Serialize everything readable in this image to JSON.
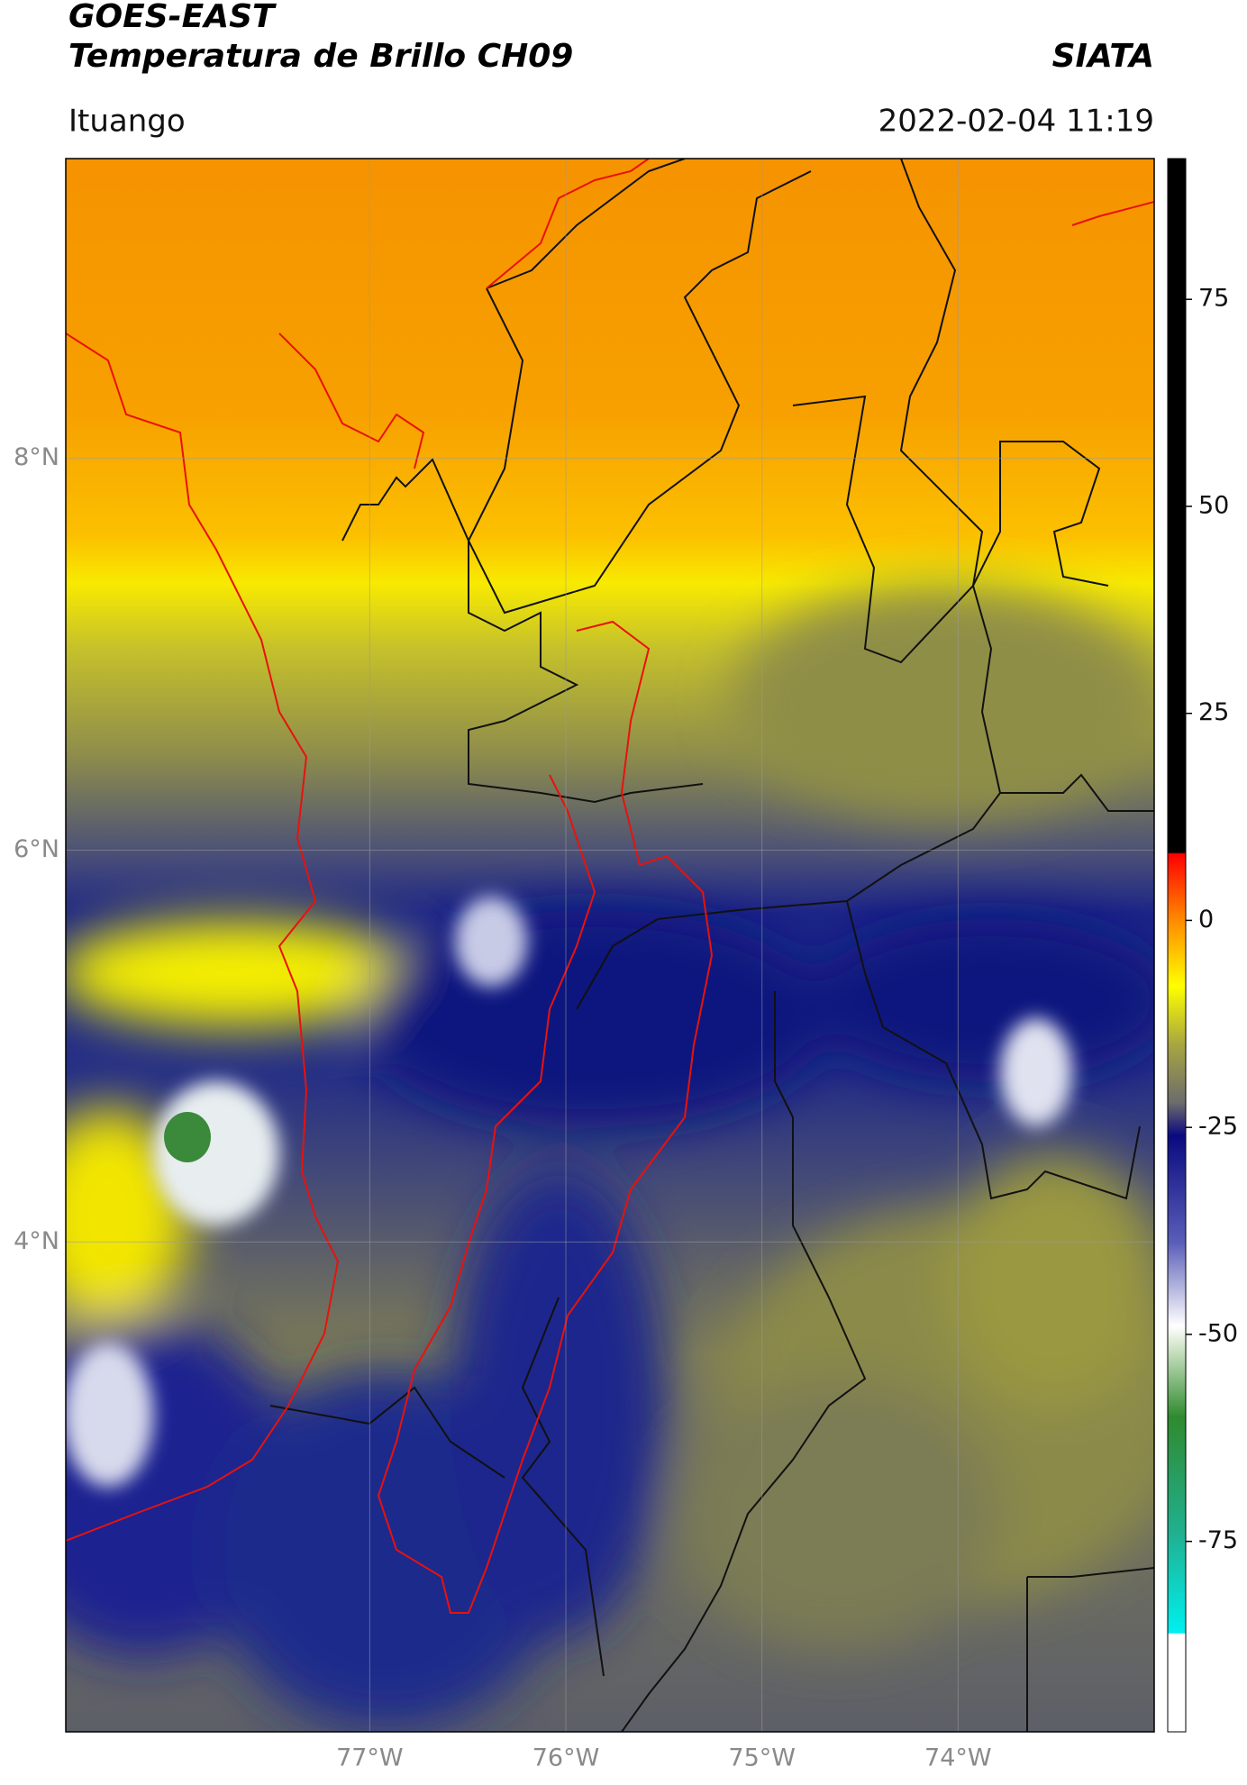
{
  "header": {
    "satellite": "GOES-EAST",
    "product": "Temperatura de Brillo CH09",
    "agency": "SIATA",
    "location": "Ituango",
    "datetime": "2022-02-04 11:19"
  },
  "chart_data": {
    "type": "map",
    "xlim": [
      -78.55,
      -73.0
    ],
    "ylim": [
      1.5,
      9.53
    ],
    "xticks": [
      {
        "value": -77,
        "label": "77°W"
      },
      {
        "value": -76,
        "label": "76°W"
      },
      {
        "value": -75,
        "label": "75°W"
      },
      {
        "value": -74,
        "label": "74°W"
      }
    ],
    "yticks": [
      {
        "value": 4,
        "label": "4°N"
      },
      {
        "value": 6,
        "label": "6°N"
      },
      {
        "value": 8,
        "label": "8°N"
      }
    ],
    "grid": true,
    "colorbar": {
      "lim": [
        -98,
        92
      ],
      "ticks": [
        -75,
        -50,
        -25,
        0,
        25,
        50,
        75
      ]
    }
  }
}
